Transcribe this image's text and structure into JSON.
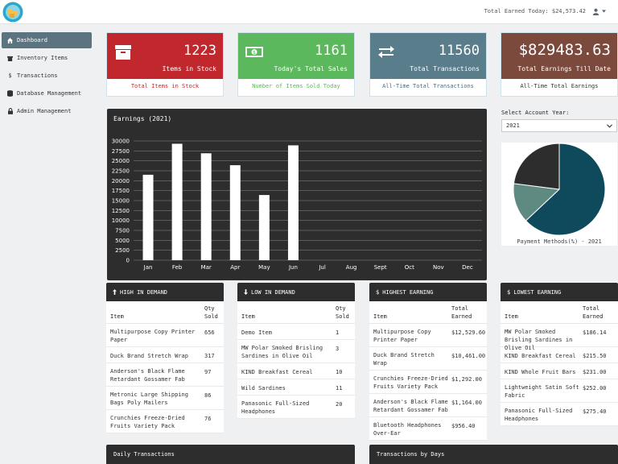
{
  "header": {
    "total_earned_today": "Total Earned Today: $24,573.42"
  },
  "sidebar": {
    "items": [
      {
        "label": "Dashboard",
        "icon": "home-icon"
      },
      {
        "label": "Inventory Items",
        "icon": "box-icon"
      },
      {
        "label": "Transactions",
        "icon": "dollar-icon"
      },
      {
        "label": "Database Management",
        "icon": "database-icon"
      },
      {
        "label": "Admin Management",
        "icon": "lock-icon"
      }
    ]
  },
  "cards": [
    {
      "value": "1223",
      "label": "Items in Stock",
      "footer": "Total Items in Stock",
      "color": "#c0282d",
      "footer_color": "#c0282d",
      "icon": "archive-box-icon"
    },
    {
      "value": "1161",
      "label": "Today's Total Sales",
      "footer": "Number of Items Sold Today",
      "color": "#5cb85c",
      "footer_color": "#5cb85c",
      "icon": "money-icon"
    },
    {
      "value": "11560",
      "label": "Total Transactions",
      "footer": "All-Time Total Transactions",
      "color": "#5a7d8c",
      "footer_color": "#4a6d7c",
      "icon": "exchange-icon"
    },
    {
      "value": "$829483.63",
      "label": "Total Earnings Till Date",
      "footer": "All-Time Total Earnings",
      "color": "#7b4a3c",
      "footer_color": "#333333",
      "icon": ""
    }
  ],
  "chart": {
    "title": "Earnings (2021)"
  },
  "chart_data": [
    {
      "type": "bar",
      "title": "Earnings (2021)",
      "categories": [
        "Jan",
        "Feb",
        "Mar",
        "Apr",
        "May",
        "Jun",
        "Jul",
        "Aug",
        "Sept",
        "Oct",
        "Nov",
        "Dec"
      ],
      "values": [
        21500,
        29300,
        26900,
        23900,
        16400,
        28900,
        0,
        0,
        0,
        0,
        0,
        0
      ],
      "ylim": [
        0,
        30000
      ],
      "yticks": [
        "0",
        "2500",
        "5000",
        "7500",
        "10000",
        "12500",
        "15000",
        "17500",
        "20000",
        "22500",
        "25000",
        "27500",
        "30000"
      ],
      "grid": true,
      "bar_color": "#ffffff",
      "background": "#2d2d2d"
    },
    {
      "type": "pie",
      "title": "Payment Methods(%) - 2021",
      "values": [
        63,
        14,
        23
      ],
      "colors": [
        "#0f4a5c",
        "#5e8a82",
        "#2d2d2d"
      ]
    }
  ],
  "account_year": {
    "label": "Select Account Year:",
    "selected": "2021"
  },
  "pie": {
    "caption": "Payment Methods(%) - 2021"
  },
  "tables": {
    "high_demand": {
      "title": "HIGH IN DEMAND",
      "col1": "Item",
      "col2": "Qty Sold",
      "rows": [
        {
          "item": "Multipurpose Copy Printer Paper",
          "value": "656"
        },
        {
          "item": "Duck Brand Stretch Wrap",
          "value": "317"
        },
        {
          "item": "Anderson's Black Flame Retardant Gossamer Fab",
          "value": "97"
        },
        {
          "item": "Metronic Large Shipping Bags Poly Mailers",
          "value": "86"
        },
        {
          "item": "Crunchies Freeze-Dried Fruits Variety Pack",
          "value": "76"
        }
      ]
    },
    "low_demand": {
      "title": "LOW IN DEMAND",
      "col1": "Item",
      "col2": "Qty Sold",
      "rows": [
        {
          "item": "Demo Item",
          "value": "1"
        },
        {
          "item": "MW Polar Smoked Brisling Sardines in Olive Oil",
          "value": "3"
        },
        {
          "item": "KIND Breakfast Cereal",
          "value": "10"
        },
        {
          "item": "Wild Sardines",
          "value": "11"
        },
        {
          "item": "Panasonic Full-Sized Headphones",
          "value": "20"
        }
      ]
    },
    "highest_earning": {
      "title": "HIGHEST EARNING",
      "col1": "Item",
      "col2": "Total Earned",
      "rows": [
        {
          "item": "Multipurpose Copy Printer Paper",
          "value": "$12,529.60"
        },
        {
          "item": "Duck Brand Stretch Wrap",
          "value": "$10,461.00"
        },
        {
          "item": "Crunchies Freeze-Dried Fruits Variety Pack",
          "value": "$1,292.00"
        },
        {
          "item": "Anderson's Black Flame Retardant Gossamer Fab",
          "value": "$1,164.00"
        },
        {
          "item": "Bluetooth Headphones Over-Ear",
          "value": "$956.40"
        }
      ]
    },
    "lowest_earning": {
      "title": "LOWEST EARNING",
      "col1": "Item",
      "col2": "Total Earned",
      "rows": [
        {
          "item": "MW Polar Smoked Brisling Sardines in Olive Oil",
          "value": "$186.14"
        },
        {
          "item": "KIND Breakfast Cereal",
          "value": "$215.50"
        },
        {
          "item": "KIND Whole Fruit Bars",
          "value": "$231.00"
        },
        {
          "item": "Lightweight Satin Soft Fabric",
          "value": "$252.00"
        },
        {
          "item": "Panasonic Full-Sized Headphones",
          "value": "$275.40"
        }
      ]
    }
  },
  "bottom": {
    "daily": "Daily Transactions",
    "by_days": "Transactions by Days"
  }
}
